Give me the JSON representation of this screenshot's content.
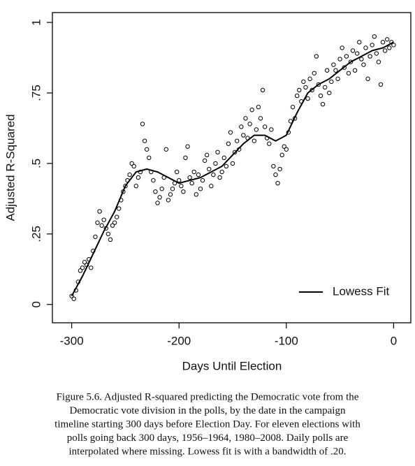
{
  "chart_data": {
    "type": "scatter",
    "x_label": "Days Until Election",
    "y_label": "Adjusted R-Squared",
    "xlim": [
      -318,
      16
    ],
    "ylim": [
      -0.065,
      1.035
    ],
    "xticks": [
      -300,
      -200,
      -100,
      0
    ],
    "yticks": [
      0,
      {
        "value": 0.25,
        "label": ".25"
      },
      {
        "value": 0.5,
        "label": ".5"
      },
      {
        "value": 0.75,
        "label": ".75"
      },
      1
    ],
    "legend": "bottom-right",
    "points": {
      "color": "#000000",
      "x": [
        -300,
        -298,
        -296,
        -294,
        -292,
        -290,
        -288,
        -286,
        -284,
        -282,
        -280,
        -278,
        -276,
        -274,
        -272,
        -270,
        -268,
        -266,
        -264,
        -262,
        -260,
        -258,
        -256,
        -254,
        -252,
        -250,
        -248,
        -246,
        -244,
        -242,
        -240,
        -238,
        -236,
        -234,
        -232,
        -230,
        -228,
        -226,
        -224,
        -222,
        -220,
        -218,
        -216,
        -214,
        -212,
        -210,
        -208,
        -206,
        -204,
        -202,
        -200,
        -198,
        -196,
        -194,
        -192,
        -190,
        -188,
        -186,
        -184,
        -182,
        -180,
        -178,
        -176,
        -174,
        -172,
        -170,
        -168,
        -166,
        -164,
        -162,
        -160,
        -158,
        -156,
        -154,
        -152,
        -150,
        -148,
        -146,
        -144,
        -142,
        -140,
        -138,
        -136,
        -134,
        -132,
        -130,
        -128,
        -126,
        -124,
        -122,
        -120,
        -118,
        -116,
        -114,
        -112,
        -110,
        -108,
        -106,
        -104,
        -102,
        -100,
        -98,
        -96,
        -94,
        -92,
        -90,
        -88,
        -86,
        -84,
        -82,
        -80,
        -78,
        -76,
        -74,
        -72,
        -70,
        -68,
        -66,
        -64,
        -62,
        -60,
        -58,
        -56,
        -54,
        -52,
        -50,
        -48,
        -46,
        -44,
        -42,
        -40,
        -38,
        -36,
        -34,
        -32,
        -30,
        -28,
        -26,
        -24,
        -22,
        -20,
        -18,
        -16,
        -14,
        -12,
        -10,
        -8,
        -6,
        -4,
        -2,
        0
      ],
      "y": [
        0.03,
        0.02,
        0.05,
        0.08,
        0.12,
        0.13,
        0.15,
        0.14,
        0.16,
        0.13,
        0.19,
        0.24,
        0.29,
        0.33,
        0.28,
        0.3,
        0.27,
        0.25,
        0.23,
        0.28,
        0.29,
        0.31,
        0.34,
        0.37,
        0.4,
        0.42,
        0.44,
        0.46,
        0.5,
        0.49,
        0.42,
        0.45,
        0.47,
        0.64,
        0.58,
        0.55,
        0.52,
        0.47,
        0.44,
        0.4,
        0.36,
        0.38,
        0.41,
        0.45,
        0.55,
        0.37,
        0.39,
        0.41,
        0.43,
        0.47,
        0.44,
        0.42,
        0.4,
        0.52,
        0.56,
        0.45,
        0.43,
        0.47,
        0.39,
        0.46,
        0.41,
        0.44,
        0.51,
        0.53,
        0.48,
        0.42,
        0.46,
        0.5,
        0.54,
        0.45,
        0.47,
        0.52,
        0.49,
        0.57,
        0.61,
        0.5,
        0.54,
        0.58,
        0.55,
        0.63,
        0.6,
        0.66,
        0.59,
        0.64,
        0.69,
        0.58,
        0.62,
        0.7,
        0.66,
        0.76,
        0.63,
        0.59,
        0.57,
        0.62,
        0.49,
        0.46,
        0.43,
        0.48,
        0.53,
        0.56,
        0.55,
        0.61,
        0.65,
        0.7,
        0.66,
        0.74,
        0.76,
        0.72,
        0.79,
        0.77,
        0.73,
        0.8,
        0.76,
        0.82,
        0.88,
        0.78,
        0.74,
        0.71,
        0.77,
        0.83,
        0.75,
        0.79,
        0.85,
        0.83,
        0.8,
        0.87,
        0.91,
        0.84,
        0.88,
        0.82,
        0.86,
        0.9,
        0.83,
        0.89,
        0.93,
        0.87,
        0.85,
        0.91,
        0.8,
        0.88,
        0.92,
        0.95,
        0.89,
        0.86,
        0.78,
        0.93,
        0.9,
        0.94,
        0.91,
        0.93,
        0.92
      ]
    },
    "lowess": {
      "name": "Lowess Fit",
      "color": "#000000",
      "x": [
        -300,
        -290,
        -280,
        -270,
        -260,
        -250,
        -240,
        -230,
        -220,
        -210,
        -200,
        -190,
        -180,
        -170,
        -160,
        -150,
        -140,
        -130,
        -120,
        -110,
        -100,
        -90,
        -80,
        -70,
        -60,
        -50,
        -40,
        -30,
        -20,
        -10,
        0
      ],
      "y": [
        0.03,
        0.1,
        0.18,
        0.26,
        0.33,
        0.42,
        0.47,
        0.48,
        0.47,
        0.45,
        0.43,
        0.44,
        0.45,
        0.47,
        0.49,
        0.53,
        0.57,
        0.6,
        0.6,
        0.58,
        0.6,
        0.68,
        0.75,
        0.78,
        0.8,
        0.83,
        0.86,
        0.88,
        0.9,
        0.91,
        0.93
      ]
    }
  },
  "caption": {
    "lines": [
      "Figure 5.6.  Adjusted R-squared predicting the Democratic vote from the",
      "Democratic vote division in the polls, by the date in the campaign",
      "timeline starting 300 days before Election Day. For eleven elections with",
      "polls going back 300 days, 1956–1964, 1980–2008. Daily polls are",
      "interpolated where missing. Lowess fit is with a bandwidth of .20."
    ]
  }
}
